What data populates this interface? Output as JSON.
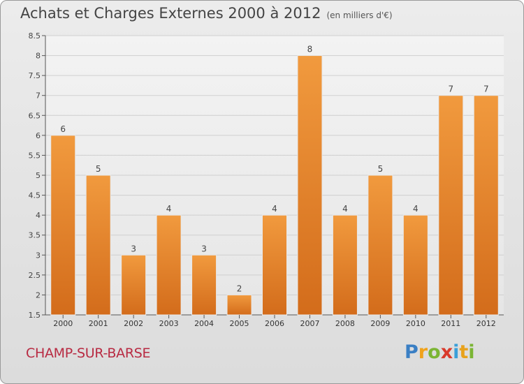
{
  "title": "Achats et Charges Externes 2000 à 2012",
  "unit_note": "(en milliers d'€)",
  "commune": "CHAMP-SUR-BARSE",
  "logo": {
    "letters": [
      {
        "ch": "P",
        "color": "#3a7fc4"
      },
      {
        "ch": "r",
        "color": "#f0a21b"
      },
      {
        "ch": "o",
        "color": "#7bb534"
      },
      {
        "ch": "x",
        "color": "#d93a2b"
      },
      {
        "ch": "i",
        "color": "#3a9fd8"
      },
      {
        "ch": "t",
        "color": "#e8a21c"
      },
      {
        "ch": "i",
        "color": "#7bb534"
      }
    ]
  },
  "colors": {
    "bar": "#f19a3e",
    "bar_dark": "#d36c1b",
    "grid": "#cfcfcf",
    "axis": "#555555"
  },
  "chart_data": {
    "type": "bar",
    "categories": [
      "2000",
      "2001",
      "2002",
      "2003",
      "2004",
      "2005",
      "2006",
      "2007",
      "2008",
      "2009",
      "2010",
      "2011",
      "2012"
    ],
    "values": [
      6,
      5,
      3,
      4,
      3,
      2,
      4,
      8,
      4,
      5,
      4,
      7,
      7
    ],
    "data_labels": [
      "6",
      "5",
      "3",
      "4",
      "3",
      "2",
      "4",
      "8",
      "4",
      "5",
      "4",
      "7",
      "7"
    ],
    "title": "Achats et Charges Externes 2000 à 2012",
    "xlabel": "",
    "ylabel": "",
    "ylim": [
      1.5,
      8.5
    ],
    "yticks": [
      1.5,
      2,
      2.5,
      3,
      3.5,
      4,
      4.5,
      5,
      5.5,
      6,
      6.5,
      7,
      7.5,
      8,
      8.5
    ],
    "ytick_labels": [
      "1.5",
      "2",
      "2.5",
      "3",
      "3.5",
      "4",
      "4.5",
      "5",
      "5.5",
      "6",
      "6.5",
      "7",
      "7.5",
      "8",
      "8.5"
    ],
    "grid": true,
    "legend": "none"
  }
}
